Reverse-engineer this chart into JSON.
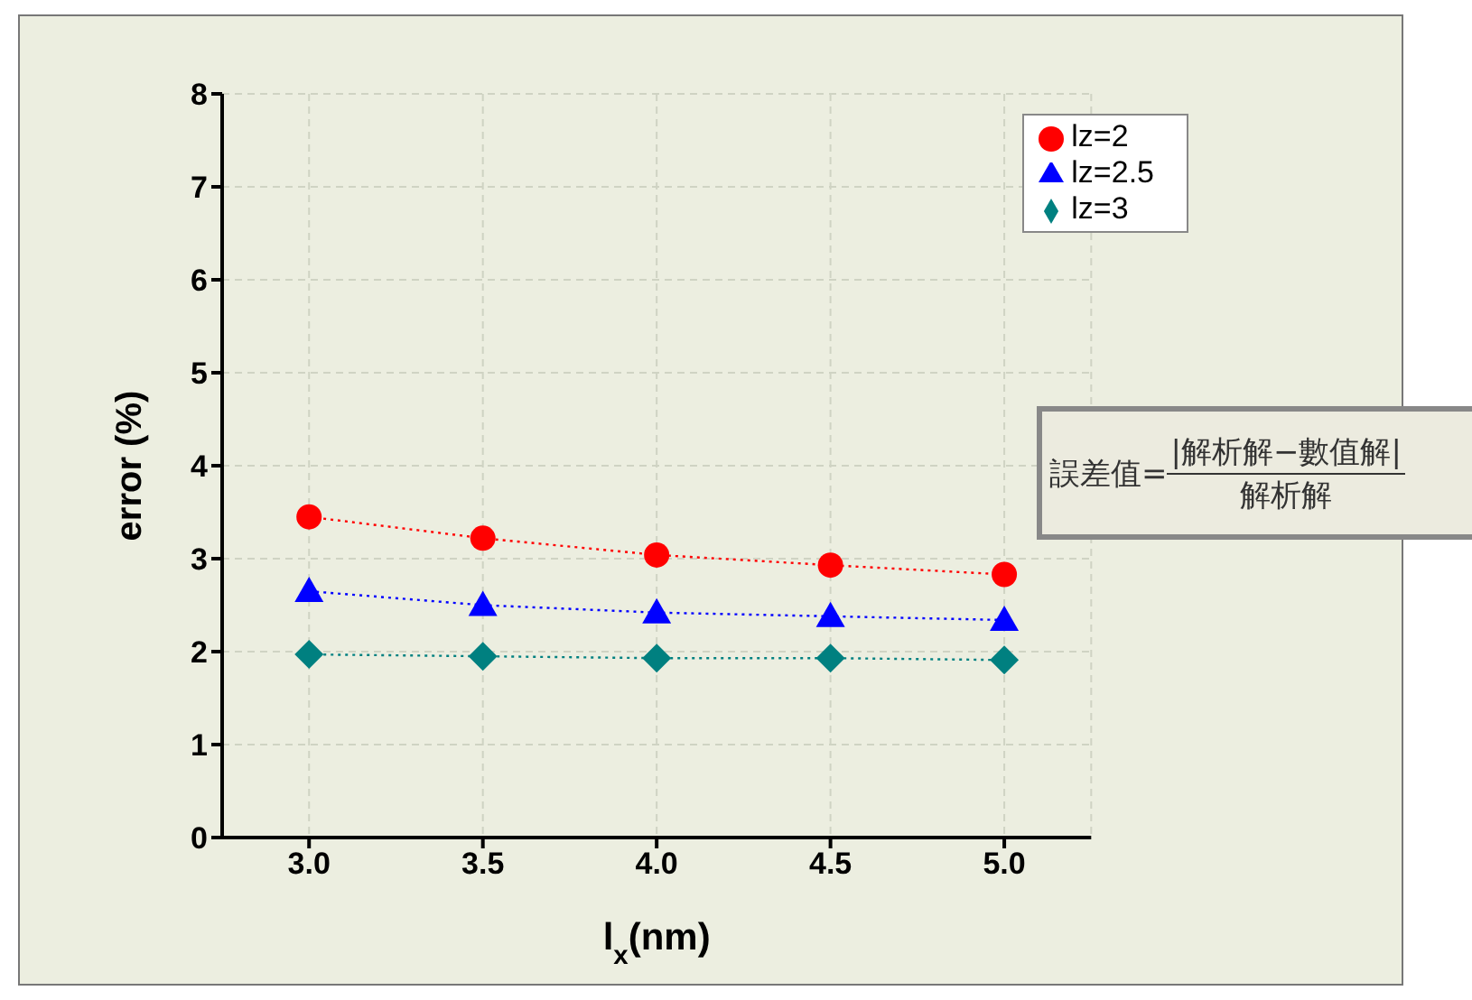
{
  "chart_data": {
    "type": "line",
    "xlabel": "l$_{x}$(nm)",
    "ylabel": "error (%)",
    "x": [
      3.0,
      3.5,
      4.0,
      4.5,
      5.0
    ],
    "series": [
      {
        "name": "lz=2",
        "color": "#ff0000",
        "marker": "circle",
        "values": [
          3.45,
          3.22,
          3.04,
          2.93,
          2.83
        ]
      },
      {
        "name": "lz=2.5",
        "color": "#0000ff",
        "marker": "triangle",
        "values": [
          2.65,
          2.5,
          2.42,
          2.38,
          2.34
        ]
      },
      {
        "name": "lz=3",
        "color": "#008080",
        "marker": "diamond",
        "values": [
          1.97,
          1.95,
          1.93,
          1.93,
          1.91
        ]
      }
    ],
    "xlim": [
      2.75,
      5.25
    ],
    "xticks": [
      {
        "value": 3,
        "label": "3.0"
      },
      {
        "value": 3.5,
        "label": "3.5"
      },
      {
        "value": 4,
        "label": "4.0"
      },
      {
        "value": 4.5,
        "label": "4.5"
      },
      {
        "value": 5,
        "label": "5.0"
      }
    ],
    "ylim": [
      0,
      8
    ],
    "yticks": [
      0,
      1,
      2,
      3,
      4,
      5,
      6,
      7,
      8
    ],
    "grid": true,
    "legend": "top right",
    "line_style": "dotted",
    "annotations": [
      "誤差值=|解析解−數值解|",
      "解析解"
    ]
  }
}
